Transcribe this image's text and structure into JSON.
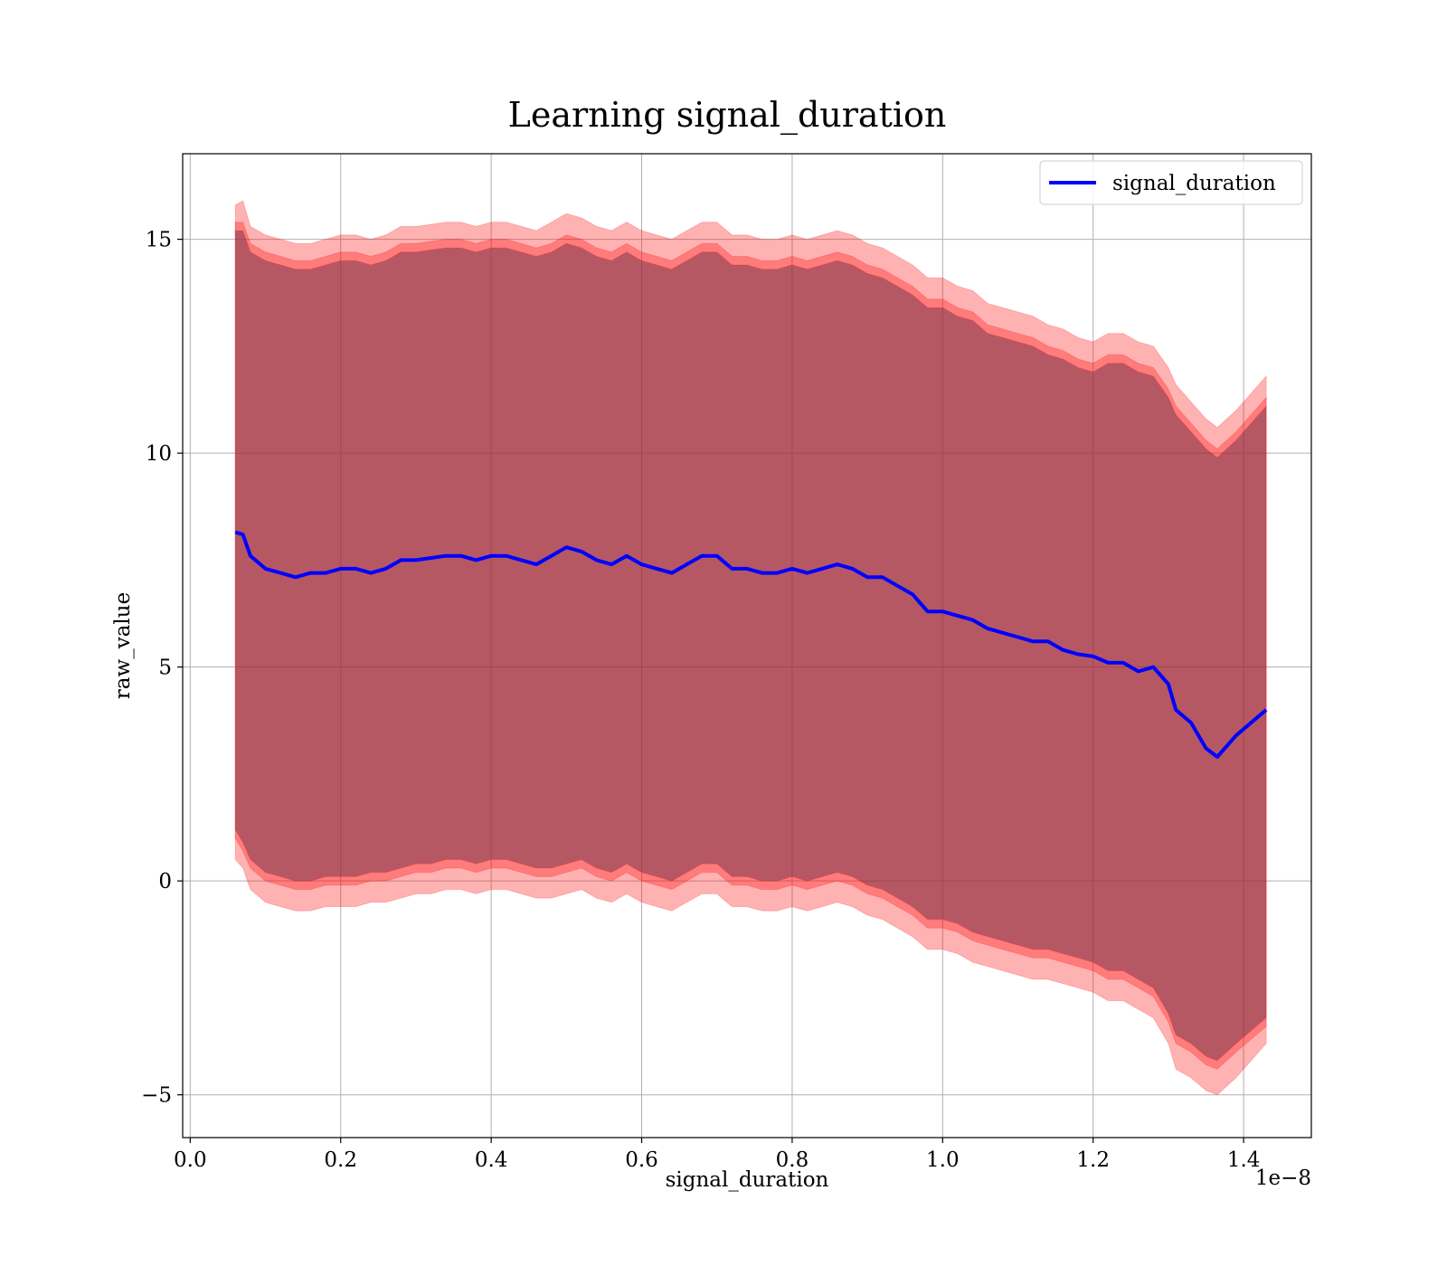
{
  "chart_data": {
    "type": "line",
    "title": "Learning signal_duration",
    "xlabel": "signal_duration",
    "ylabel": "raw_value",
    "x_offset_text": "1e−8",
    "xlim": [
      -0.01,
      1.49
    ],
    "ylim": [
      -6,
      17
    ],
    "x_ticks": [
      0.0,
      0.2,
      0.4,
      0.6,
      0.8,
      1.0,
      1.2,
      1.4
    ],
    "x_tick_labels": [
      "0.0",
      "0.2",
      "0.4",
      "0.6",
      "0.8",
      "1.0",
      "1.2",
      "1.4"
    ],
    "y_ticks": [
      -5,
      0,
      5,
      10,
      15
    ],
    "y_tick_labels": [
      "−5",
      "0",
      "5",
      "10",
      "15"
    ],
    "grid": true,
    "legend": {
      "position": "top-right",
      "entries": [
        "signal_duration"
      ]
    },
    "colors": {
      "line": "#0000ff",
      "band": "#ff0000",
      "grid": "#b0b0b0"
    },
    "x": [
      0.06,
      0.07,
      0.08,
      0.1,
      0.12,
      0.14,
      0.16,
      0.18,
      0.2,
      0.22,
      0.24,
      0.26,
      0.28,
      0.3,
      0.32,
      0.34,
      0.36,
      0.38,
      0.4,
      0.42,
      0.44,
      0.46,
      0.48,
      0.5,
      0.52,
      0.54,
      0.56,
      0.58,
      0.6,
      0.62,
      0.64,
      0.66,
      0.68,
      0.7,
      0.72,
      0.74,
      0.76,
      0.78,
      0.8,
      0.82,
      0.84,
      0.86,
      0.88,
      0.9,
      0.92,
      0.94,
      0.96,
      0.98,
      1.0,
      1.02,
      1.04,
      1.06,
      1.08,
      1.1,
      1.12,
      1.14,
      1.16,
      1.18,
      1.2,
      1.22,
      1.24,
      1.26,
      1.28,
      1.3,
      1.31,
      1.33,
      1.35,
      1.365,
      1.39,
      1.43
    ],
    "series": [
      {
        "name": "signal_duration",
        "values": [
          8.15,
          8.1,
          7.6,
          7.3,
          7.2,
          7.1,
          7.2,
          7.2,
          7.3,
          7.3,
          7.2,
          7.3,
          7.5,
          7.5,
          7.55,
          7.6,
          7.6,
          7.5,
          7.6,
          7.6,
          7.5,
          7.4,
          7.6,
          7.8,
          7.7,
          7.5,
          7.4,
          7.6,
          7.4,
          7.3,
          7.2,
          7.4,
          7.6,
          7.6,
          7.3,
          7.3,
          7.2,
          7.2,
          7.3,
          7.2,
          7.3,
          7.4,
          7.3,
          7.1,
          7.1,
          6.9,
          6.7,
          6.3,
          6.3,
          6.2,
          6.1,
          5.9,
          5.8,
          5.7,
          5.6,
          5.6,
          5.4,
          5.3,
          5.25,
          5.1,
          5.1,
          4.9,
          5.0,
          4.6,
          4.0,
          3.7,
          3.1,
          2.9,
          3.4,
          4.0
        ]
      }
    ],
    "bands": [
      {
        "lower": [
          0.5,
          0.3,
          -0.2,
          -0.5,
          -0.6,
          -0.7,
          -0.7,
          -0.6,
          -0.6,
          -0.6,
          -0.5,
          -0.5,
          -0.4,
          -0.3,
          -0.3,
          -0.2,
          -0.2,
          -0.3,
          -0.2,
          -0.2,
          -0.3,
          -0.4,
          -0.4,
          -0.3,
          -0.2,
          -0.4,
          -0.5,
          -0.3,
          -0.5,
          -0.6,
          -0.7,
          -0.5,
          -0.3,
          -0.3,
          -0.6,
          -0.6,
          -0.7,
          -0.7,
          -0.6,
          -0.7,
          -0.6,
          -0.5,
          -0.6,
          -0.8,
          -0.9,
          -1.1,
          -1.3,
          -1.6,
          -1.6,
          -1.7,
          -1.9,
          -2.0,
          -2.1,
          -2.2,
          -2.3,
          -2.3,
          -2.4,
          -2.5,
          -2.6,
          -2.8,
          -2.8,
          -3.0,
          -3.2,
          -3.8,
          -4.4,
          -4.6,
          -4.9,
          -5.0,
          -4.6,
          -3.8
        ],
        "upper": [
          15.8,
          15.9,
          15.3,
          15.1,
          15.0,
          14.9,
          14.9,
          15.0,
          15.1,
          15.1,
          15.0,
          15.1,
          15.3,
          15.3,
          15.35,
          15.4,
          15.4,
          15.3,
          15.4,
          15.4,
          15.3,
          15.2,
          15.4,
          15.6,
          15.5,
          15.3,
          15.2,
          15.4,
          15.2,
          15.1,
          15.0,
          15.2,
          15.4,
          15.4,
          15.1,
          15.1,
          15.0,
          15.0,
          15.1,
          15.0,
          15.1,
          15.2,
          15.1,
          14.9,
          14.8,
          14.6,
          14.4,
          14.1,
          14.1,
          13.9,
          13.8,
          13.5,
          13.4,
          13.3,
          13.2,
          13.0,
          12.9,
          12.7,
          12.6,
          12.8,
          12.8,
          12.6,
          12.5,
          12.0,
          11.6,
          11.2,
          10.8,
          10.6,
          11.0,
          11.8
        ]
      },
      {
        "lower": [
          1.0,
          0.7,
          0.3,
          0.0,
          -0.1,
          -0.2,
          -0.2,
          -0.1,
          -0.1,
          -0.1,
          0.0,
          0.0,
          0.1,
          0.2,
          0.2,
          0.3,
          0.3,
          0.2,
          0.3,
          0.3,
          0.2,
          0.1,
          0.1,
          0.2,
          0.3,
          0.1,
          0.0,
          0.2,
          0.0,
          -0.1,
          -0.2,
          0.0,
          0.2,
          0.2,
          -0.1,
          -0.1,
          -0.2,
          -0.2,
          -0.1,
          -0.2,
          -0.1,
          0.0,
          -0.1,
          -0.3,
          -0.4,
          -0.6,
          -0.8,
          -1.1,
          -1.1,
          -1.2,
          -1.4,
          -1.5,
          -1.6,
          -1.7,
          -1.8,
          -1.8,
          -1.9,
          -2.0,
          -2.1,
          -2.3,
          -2.3,
          -2.5,
          -2.7,
          -3.3,
          -3.8,
          -4.0,
          -4.3,
          -4.4,
          -4.0,
          -3.4
        ],
        "upper": [
          15.4,
          15.4,
          14.9,
          14.7,
          14.6,
          14.5,
          14.5,
          14.6,
          14.7,
          14.7,
          14.6,
          14.7,
          14.9,
          14.9,
          14.95,
          15.0,
          15.0,
          14.9,
          15.0,
          15.0,
          14.9,
          14.8,
          14.9,
          15.1,
          15.0,
          14.8,
          14.7,
          14.9,
          14.7,
          14.6,
          14.5,
          14.7,
          14.9,
          14.9,
          14.6,
          14.6,
          14.5,
          14.5,
          14.6,
          14.5,
          14.6,
          14.7,
          14.6,
          14.4,
          14.3,
          14.1,
          13.9,
          13.6,
          13.6,
          13.4,
          13.3,
          13.0,
          12.9,
          12.8,
          12.7,
          12.5,
          12.4,
          12.2,
          12.1,
          12.3,
          12.3,
          12.1,
          12.0,
          11.5,
          11.1,
          10.7,
          10.3,
          10.1,
          10.5,
          11.3
        ]
      },
      {
        "lower": [
          1.2,
          0.9,
          0.5,
          0.2,
          0.1,
          0.0,
          0.0,
          0.1,
          0.1,
          0.1,
          0.2,
          0.2,
          0.3,
          0.4,
          0.4,
          0.5,
          0.5,
          0.4,
          0.5,
          0.5,
          0.4,
          0.3,
          0.3,
          0.4,
          0.5,
          0.3,
          0.2,
          0.4,
          0.2,
          0.1,
          0.0,
          0.2,
          0.4,
          0.4,
          0.1,
          0.1,
          0.0,
          0.0,
          0.1,
          0.0,
          0.1,
          0.2,
          0.1,
          -0.1,
          -0.2,
          -0.4,
          -0.6,
          -0.9,
          -0.9,
          -1.0,
          -1.2,
          -1.3,
          -1.4,
          -1.5,
          -1.6,
          -1.6,
          -1.7,
          -1.8,
          -1.9,
          -2.1,
          -2.1,
          -2.3,
          -2.5,
          -3.1,
          -3.6,
          -3.8,
          -4.1,
          -4.2,
          -3.8,
          -3.2
        ],
        "upper": [
          15.2,
          15.2,
          14.7,
          14.5,
          14.4,
          14.3,
          14.3,
          14.4,
          14.5,
          14.5,
          14.4,
          14.5,
          14.7,
          14.7,
          14.75,
          14.8,
          14.8,
          14.7,
          14.8,
          14.8,
          14.7,
          14.6,
          14.7,
          14.9,
          14.8,
          14.6,
          14.5,
          14.7,
          14.5,
          14.4,
          14.3,
          14.5,
          14.7,
          14.7,
          14.4,
          14.4,
          14.3,
          14.3,
          14.4,
          14.3,
          14.4,
          14.5,
          14.4,
          14.2,
          14.1,
          13.9,
          13.7,
          13.4,
          13.4,
          13.2,
          13.1,
          12.8,
          12.7,
          12.6,
          12.5,
          12.3,
          12.2,
          12.0,
          11.9,
          12.1,
          12.1,
          11.9,
          11.8,
          11.3,
          10.9,
          10.5,
          10.1,
          9.9,
          10.3,
          11.1
        ]
      }
    ]
  }
}
